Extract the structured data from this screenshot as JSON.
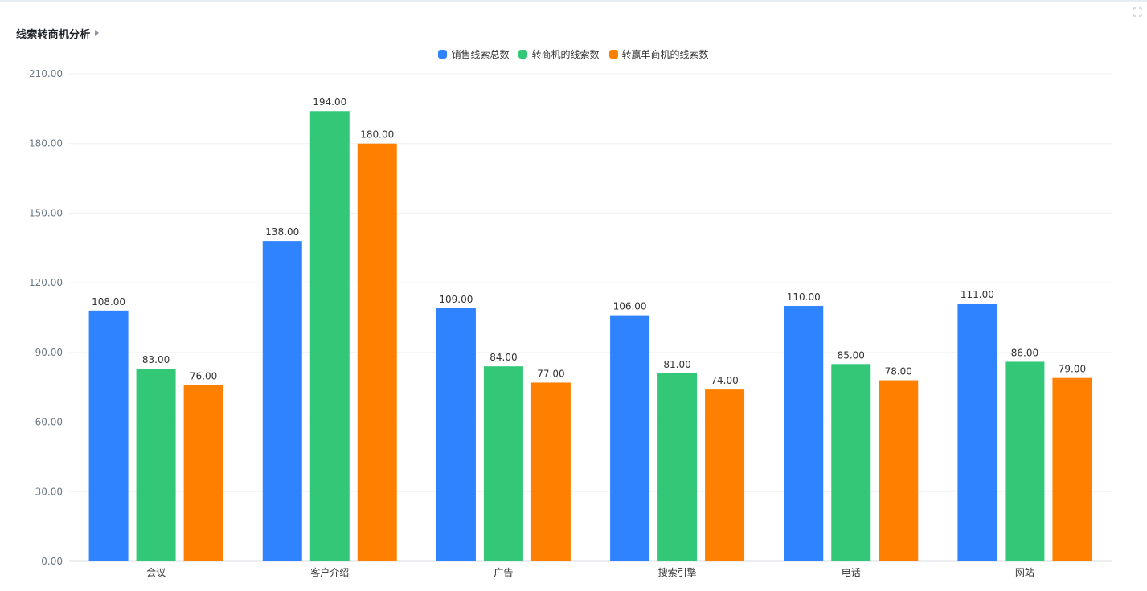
{
  "header": {
    "title": "线索转商机分析",
    "expand_icon": "caret-right-icon",
    "fullscreen_icon": "fullscreen-icon"
  },
  "colors": {
    "series": [
      "#3083ff",
      "#32c878",
      "#ff8000"
    ],
    "grid": "#eef0f3",
    "axis": "#d9dde3"
  },
  "chart_data": {
    "type": "bar",
    "title": "线索转商机分析",
    "categories": [
      "会议",
      "客户介绍",
      "广告",
      "搜索引擎",
      "电话",
      "网站"
    ],
    "series": [
      {
        "name": "销售线索总数",
        "values": [
          108,
          138,
          109,
          106,
          110,
          111
        ]
      },
      {
        "name": "转商机的线索数",
        "values": [
          83,
          194,
          84,
          81,
          85,
          86
        ]
      },
      {
        "name": "转赢单商机的线索数",
        "values": [
          76,
          180,
          77,
          74,
          78,
          79
        ]
      }
    ],
    "ylim": [
      0,
      210
    ],
    "yticks": [
      "0.00",
      "30.00",
      "60.00",
      "90.00",
      "120.00",
      "150.00",
      "180.00",
      "210.00"
    ],
    "value_format_decimals": 2,
    "legend_position": "top-center",
    "grid": true
  }
}
